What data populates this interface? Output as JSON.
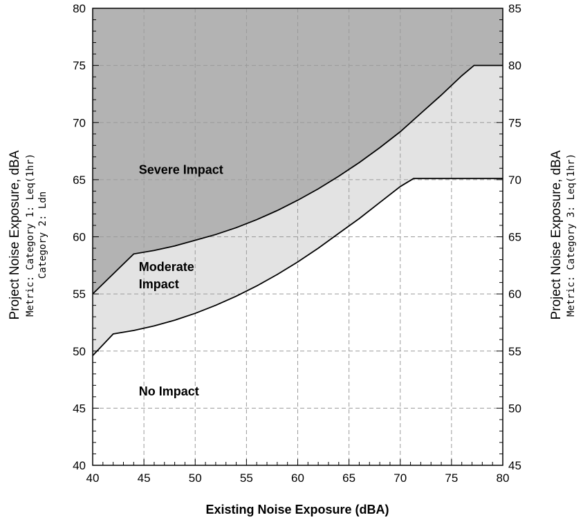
{
  "chart_data": {
    "type": "area",
    "xlabel": "Existing Noise Exposure (dBA)",
    "ylabel_left": "Project Noise Exposure, dBA",
    "ylabel_left_sub1": "Metric: Category 1: Leq(1hr)",
    "ylabel_left_sub2": "Category 2: Ldn",
    "ylabel_right": "Project Noise Exposure, dBA",
    "ylabel_right_sub": "Metric: Category 3: Leq(1hr)",
    "xlim": [
      40,
      80
    ],
    "ylim_left": [
      40,
      80
    ],
    "ylim_right": [
      45,
      85
    ],
    "x_ticks": [
      40,
      45,
      50,
      55,
      60,
      65,
      70,
      75,
      80
    ],
    "y_ticks_left": [
      40,
      45,
      50,
      55,
      60,
      65,
      70,
      75,
      80
    ],
    "y_ticks_right": [
      45,
      50,
      55,
      60,
      65,
      70,
      75,
      80,
      85
    ],
    "grid": true,
    "series": [
      {
        "name": "Severe Impact",
        "x": [
          40,
          44,
          46,
          48,
          50,
          52,
          54,
          56,
          58,
          60,
          62,
          64,
          66,
          68,
          70,
          72,
          74,
          76,
          77.2,
          80
        ],
        "y": [
          55,
          58.5,
          58.8,
          59.2,
          59.7,
          60.2,
          60.8,
          61.5,
          62.3,
          63.2,
          64.2,
          65.3,
          66.5,
          67.8,
          69.2,
          70.8,
          72.4,
          74.1,
          75,
          75
        ]
      },
      {
        "name": "Moderate Impact",
        "x": [
          40,
          42,
          44,
          46,
          48,
          50,
          52,
          54,
          56,
          58,
          60,
          62,
          64,
          66,
          68,
          70,
          71.3,
          80
        ],
        "y": [
          49.6,
          51.5,
          51.8,
          52.2,
          52.7,
          53.3,
          54,
          54.8,
          55.7,
          56.7,
          57.8,
          59,
          60.3,
          61.6,
          63,
          64.4,
          65.1,
          65.1
        ]
      }
    ],
    "region_labels": [
      {
        "text": "Severe Impact",
        "x": 44.5,
        "y": 65.5
      },
      {
        "text": "Moderate",
        "x": 44.5,
        "y": 57
      },
      {
        "text": "Impact",
        "x": 44.5,
        "y": 55.5
      },
      {
        "text": "No Impact",
        "x": 44.5,
        "y": 46.1
      }
    ],
    "colors": {
      "severe_fill": "#b3b3b3",
      "moderate_fill": "#e3e3e3",
      "none_fill": "#ffffff",
      "grid": "#9a9a9a",
      "line": "#000000"
    }
  }
}
